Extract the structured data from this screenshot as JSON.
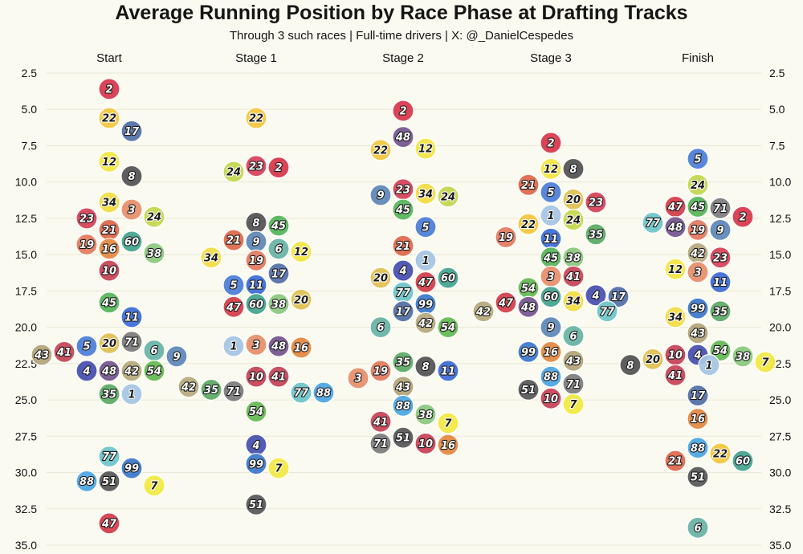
{
  "title": "Average Running Position by Race Phase at Drafting Tracks",
  "subtitle": "Through 3 such races | Full-time drivers | X: @_DanielCespedes",
  "chart_data": {
    "type": "scatter",
    "title": "Average Running Position by Race Phase at Drafting Tracks",
    "subtitle": "Through 3 such races | Full-time drivers | X: @_DanielCespedes",
    "categories": [
      "Start",
      "Stage 1",
      "Stage 2",
      "Stage 3",
      "Finish"
    ],
    "y_axis": {
      "inverted": true,
      "ylim": [
        2.5,
        35.0
      ],
      "ticks": [
        "2.5",
        "5.0",
        "7.5",
        "10.0",
        "12.5",
        "15.0",
        "17.5",
        "20.0",
        "22.5",
        "25.0",
        "27.5",
        "30.0",
        "32.5",
        "35.0"
      ],
      "both_sides": true
    },
    "grid": true,
    "car_colors": {
      "2": "#d93a4e",
      "22": "#f2c740",
      "17": "#5572a8",
      "12": "#f2e644",
      "8": "#555555",
      "34": "#f2dc44",
      "3": "#e8906e",
      "23": "#d8435a",
      "24": "#c5d650",
      "21": "#df6a4e",
      "60": "#47a58f",
      "19": "#e47c62",
      "16": "#e58a45",
      "38": "#8dc97f",
      "10": "#c84558",
      "45": "#58b65c",
      "11": "#3f6fd6",
      "20": "#e0c154",
      "71": "#7e7e7e",
      "5": "#4f7fd8",
      "41": "#c6485a",
      "9": "#6189b8",
      "43": "#b4a57a",
      "6": "#6ab4a6",
      "48": "#775890",
      "42": "#b7ab7e",
      "4": "#4a52b0",
      "54": "#67bb55",
      "35": "#5fac67",
      "1": "#a6c5e3",
      "77": "#70c6c8",
      "99": "#3f7acb",
      "51": "#5b5b5b",
      "88": "#4fa8e3",
      "7": "#f2e944",
      "47": "#d4404d"
    },
    "series": [
      {
        "category": "Start",
        "cars": [
          {
            "car": "2",
            "y": 3.6
          },
          {
            "car": "22",
            "y": 5.6
          },
          {
            "car": "17",
            "y": 6.5
          },
          {
            "car": "12",
            "y": 8.6
          },
          {
            "car": "8",
            "y": 9.6
          },
          {
            "car": "34",
            "y": 11.4
          },
          {
            "car": "3",
            "y": 11.9
          },
          {
            "car": "23",
            "y": 12.5
          },
          {
            "car": "24",
            "y": 12.4
          },
          {
            "car": "21",
            "y": 13.3
          },
          {
            "car": "60",
            "y": 14.1
          },
          {
            "car": "19",
            "y": 14.3
          },
          {
            "car": "16",
            "y": 14.6
          },
          {
            "car": "38",
            "y": 14.9
          },
          {
            "car": "10",
            "y": 16.1
          },
          {
            "car": "45",
            "y": 18.3
          },
          {
            "car": "11",
            "y": 19.3
          },
          {
            "car": "20",
            "y": 21.1
          },
          {
            "car": "71",
            "y": 21.0
          },
          {
            "car": "5",
            "y": 21.3
          },
          {
            "car": "6",
            "y": 21.6
          },
          {
            "car": "41",
            "y": 21.7
          },
          {
            "car": "9",
            "y": 22.0
          },
          {
            "car": "43",
            "y": 21.9
          },
          {
            "car": "48",
            "y": 23.0
          },
          {
            "car": "42",
            "y": 23.0
          },
          {
            "car": "4",
            "y": 23.0
          },
          {
            "car": "54",
            "y": 23.0
          },
          {
            "car": "35",
            "y": 24.6
          },
          {
            "car": "1",
            "y": 24.6
          },
          {
            "car": "77",
            "y": 28.9
          },
          {
            "car": "99",
            "y": 29.7
          },
          {
            "car": "51",
            "y": 30.6
          },
          {
            "car": "88",
            "y": 30.6
          },
          {
            "car": "7",
            "y": 30.9
          },
          {
            "car": "47",
            "y": 33.5
          }
        ]
      },
      {
        "category": "Stage 1",
        "cars": [
          {
            "car": "22",
            "y": 5.6
          },
          {
            "car": "23",
            "y": 8.9
          },
          {
            "car": "2",
            "y": 9.0
          },
          {
            "car": "24",
            "y": 9.3
          },
          {
            "car": "8",
            "y": 12.8
          },
          {
            "car": "45",
            "y": 13.0
          },
          {
            "car": "21",
            "y": 14.0
          },
          {
            "car": "9",
            "y": 14.1
          },
          {
            "car": "6",
            "y": 14.6
          },
          {
            "car": "12",
            "y": 14.8
          },
          {
            "car": "34",
            "y": 15.2
          },
          {
            "car": "19",
            "y": 15.4
          },
          {
            "car": "17",
            "y": 16.3
          },
          {
            "car": "11",
            "y": 17.1
          },
          {
            "car": "5",
            "y": 17.1
          },
          {
            "car": "60",
            "y": 18.4
          },
          {
            "car": "38",
            "y": 18.4
          },
          {
            "car": "47",
            "y": 18.6
          },
          {
            "car": "20",
            "y": 18.1
          },
          {
            "car": "3",
            "y": 21.2
          },
          {
            "car": "48",
            "y": 21.3
          },
          {
            "car": "1",
            "y": 21.3
          },
          {
            "car": "16",
            "y": 21.4
          },
          {
            "car": "10",
            "y": 23.4
          },
          {
            "car": "41",
            "y": 23.4
          },
          {
            "car": "71",
            "y": 24.4
          },
          {
            "car": "77",
            "y": 24.5
          },
          {
            "car": "35",
            "y": 24.3
          },
          {
            "car": "88",
            "y": 24.5
          },
          {
            "car": "42",
            "y": 24.1
          },
          {
            "car": "54",
            "y": 25.8
          },
          {
            "car": "4",
            "y": 28.1
          },
          {
            "car": "99",
            "y": 29.4
          },
          {
            "car": "7",
            "y": 29.7
          },
          {
            "car": "51",
            "y": 32.2
          }
        ]
      },
      {
        "category": "Stage 2",
        "cars": [
          {
            "car": "2",
            "y": 5.1
          },
          {
            "car": "48",
            "y": 6.9
          },
          {
            "car": "12",
            "y": 7.7
          },
          {
            "car": "22",
            "y": 7.8
          },
          {
            "car": "23",
            "y": 10.5
          },
          {
            "car": "34",
            "y": 10.8
          },
          {
            "car": "9",
            "y": 10.9
          },
          {
            "car": "24",
            "y": 11.0
          },
          {
            "car": "45",
            "y": 11.9
          },
          {
            "car": "5",
            "y": 13.1
          },
          {
            "car": "21",
            "y": 14.4
          },
          {
            "car": "1",
            "y": 15.4
          },
          {
            "car": "4",
            "y": 16.1
          },
          {
            "car": "20",
            "y": 16.6
          },
          {
            "car": "60",
            "y": 16.6
          },
          {
            "car": "47",
            "y": 16.9
          },
          {
            "car": "77",
            "y": 17.6
          },
          {
            "car": "99",
            "y": 18.4
          },
          {
            "car": "17",
            "y": 18.9
          },
          {
            "car": "42",
            "y": 19.7
          },
          {
            "car": "6",
            "y": 20.0
          },
          {
            "car": "54",
            "y": 20.0
          },
          {
            "car": "35",
            "y": 22.4
          },
          {
            "car": "8",
            "y": 22.7
          },
          {
            "car": "19",
            "y": 23.0
          },
          {
            "car": "11",
            "y": 23.0
          },
          {
            "car": "3",
            "y": 23.5
          },
          {
            "car": "43",
            "y": 24.1
          },
          {
            "car": "88",
            "y": 25.4
          },
          {
            "car": "38",
            "y": 26.0
          },
          {
            "car": "41",
            "y": 26.5
          },
          {
            "car": "7",
            "y": 26.6
          },
          {
            "car": "51",
            "y": 27.6
          },
          {
            "car": "10",
            "y": 28.0
          },
          {
            "car": "71",
            "y": 28.0
          },
          {
            "car": "16",
            "y": 28.1
          }
        ]
      },
      {
        "category": "Stage 3",
        "cars": [
          {
            "car": "2",
            "y": 7.3
          },
          {
            "car": "12",
            "y": 9.1
          },
          {
            "car": "8",
            "y": 9.1
          },
          {
            "car": "21",
            "y": 10.2
          },
          {
            "car": "5",
            "y": 10.7
          },
          {
            "car": "20",
            "y": 11.2
          },
          {
            "car": "23",
            "y": 11.4
          },
          {
            "car": "1",
            "y": 12.3
          },
          {
            "car": "24",
            "y": 12.6
          },
          {
            "car": "22",
            "y": 12.9
          },
          {
            "car": "11",
            "y": 13.9
          },
          {
            "car": "35",
            "y": 13.6
          },
          {
            "car": "19",
            "y": 13.8
          },
          {
            "car": "45",
            "y": 15.2
          },
          {
            "car": "38",
            "y": 15.2
          },
          {
            "car": "3",
            "y": 16.5
          },
          {
            "car": "41",
            "y": 16.5
          },
          {
            "car": "54",
            "y": 17.3
          },
          {
            "car": "60",
            "y": 17.9
          },
          {
            "car": "34",
            "y": 18.2
          },
          {
            "car": "4",
            "y": 17.8
          },
          {
            "car": "47",
            "y": 18.3
          },
          {
            "car": "17",
            "y": 17.9
          },
          {
            "car": "48",
            "y": 18.6
          },
          {
            "car": "42",
            "y": 18.9
          },
          {
            "car": "77",
            "y": 18.9
          },
          {
            "car": "9",
            "y": 20.0
          },
          {
            "car": "6",
            "y": 20.6
          },
          {
            "car": "16",
            "y": 21.7
          },
          {
            "car": "99",
            "y": 21.7
          },
          {
            "car": "43",
            "y": 22.3
          },
          {
            "car": "88",
            "y": 23.4
          },
          {
            "car": "71",
            "y": 23.9
          },
          {
            "car": "51",
            "y": 24.3
          },
          {
            "car": "10",
            "y": 24.9
          },
          {
            "car": "7",
            "y": 25.3
          }
        ]
      },
      {
        "category": "Finish",
        "cars": [
          {
            "car": "5",
            "y": 8.4
          },
          {
            "car": "24",
            "y": 10.2
          },
          {
            "car": "45",
            "y": 11.7
          },
          {
            "car": "71",
            "y": 11.8
          },
          {
            "car": "47",
            "y": 11.7
          },
          {
            "car": "2",
            "y": 12.4
          },
          {
            "car": "77",
            "y": 12.8
          },
          {
            "car": "19",
            "y": 13.3
          },
          {
            "car": "9",
            "y": 13.3
          },
          {
            "car": "48",
            "y": 13.1
          },
          {
            "car": "42",
            "y": 14.9
          },
          {
            "car": "23",
            "y": 15.2
          },
          {
            "car": "12",
            "y": 16.0
          },
          {
            "car": "3",
            "y": 16.2
          },
          {
            "car": "11",
            "y": 16.9
          },
          {
            "car": "99",
            "y": 18.7
          },
          {
            "car": "35",
            "y": 18.9
          },
          {
            "car": "34",
            "y": 19.3
          },
          {
            "car": "43",
            "y": 20.4
          },
          {
            "car": "54",
            "y": 21.6
          },
          {
            "car": "4",
            "y": 21.9
          },
          {
            "car": "10",
            "y": 21.9
          },
          {
            "car": "38",
            "y": 22.0
          },
          {
            "car": "20",
            "y": 22.2
          },
          {
            "car": "7",
            "y": 22.4
          },
          {
            "car": "8",
            "y": 22.6
          },
          {
            "car": "1",
            "y": 22.6
          },
          {
            "car": "41",
            "y": 23.3
          },
          {
            "car": "17",
            "y": 24.7
          },
          {
            "car": "16",
            "y": 26.3
          },
          {
            "car": "88",
            "y": 28.3
          },
          {
            "car": "22",
            "y": 28.7
          },
          {
            "car": "21",
            "y": 29.2
          },
          {
            "car": "60",
            "y": 29.2
          },
          {
            "car": "51",
            "y": 30.3
          },
          {
            "car": "6",
            "y": 33.8
          }
        ]
      }
    ]
  }
}
